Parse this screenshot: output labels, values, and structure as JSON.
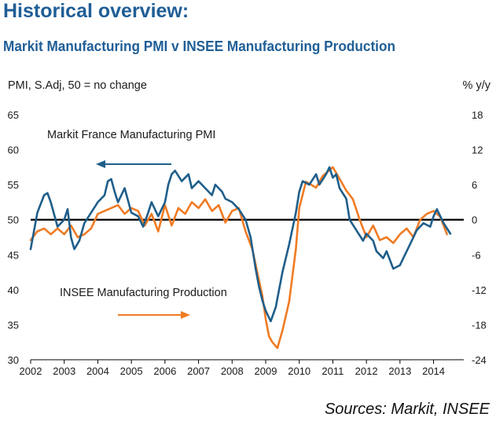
{
  "header": {
    "title": "Historical overview:",
    "subtitle": "Markit Manufacturing PMI v INSEE Manufacturing Production"
  },
  "footer": {
    "source": "Sources: Markit, INSEE"
  },
  "colors": {
    "pmi": "#1f5e8a",
    "production": "#f07b24",
    "zero_line": "#000000",
    "text": "#1a1a1a"
  },
  "chart_data": {
    "type": "line",
    "title": "Markit Manufacturing PMI v INSEE Manufacturing Production",
    "ylabel_left": "PMI, S.Adj, 50 = no change",
    "ylabel_right": "% y/y",
    "x_range": [
      2002,
      2014.9
    ],
    "ylim_left": [
      30,
      65
    ],
    "ylim_right": [
      -24,
      18
    ],
    "left_ticks": [
      "65",
      "60",
      "55",
      "50",
      "45",
      "40",
      "35",
      "30"
    ],
    "right_ticks": [
      "18",
      "12",
      "6",
      "0",
      "-6",
      "-12",
      "-18",
      "-24"
    ],
    "x_ticks": [
      "2002",
      "2003",
      "2004",
      "2005",
      "2006",
      "2007",
      "2008",
      "2009",
      "2010",
      "2011",
      "2012",
      "2013",
      "2014"
    ],
    "reference_line": {
      "axis": "left",
      "value": 50
    },
    "series": [
      {
        "name": "Markit France Manufacturing PMI",
        "axis": "left",
        "label": "Markit France Manufacturing PMI",
        "x": [
          2002.0,
          2002.2,
          2002.4,
          2002.5,
          2002.6,
          2002.8,
          2003.0,
          2003.1,
          2003.2,
          2003.3,
          2003.45,
          2003.6,
          2003.8,
          2004.0,
          2004.2,
          2004.3,
          2004.4,
          2004.5,
          2004.6,
          2004.8,
          2005.0,
          2005.2,
          2005.35,
          2005.5,
          2005.6,
          2005.8,
          2006.0,
          2006.1,
          2006.2,
          2006.3,
          2006.5,
          2006.7,
          2006.8,
          2007.0,
          2007.2,
          2007.4,
          2007.5,
          2007.7,
          2007.8,
          2008.0,
          2008.2,
          2008.4,
          2008.55,
          2008.7,
          2008.8,
          2008.9,
          2009.0,
          2009.15,
          2009.3,
          2009.5,
          2009.7,
          2009.9,
          2010.0,
          2010.1,
          2010.3,
          2010.5,
          2010.6,
          2010.8,
          2010.9,
          2011.0,
          2011.1,
          2011.2,
          2011.4,
          2011.5,
          2011.7,
          2011.9,
          2012.0,
          2012.2,
          2012.3,
          2012.5,
          2012.6,
          2012.8,
          2013.0,
          2013.1,
          2013.3,
          2013.5,
          2013.7,
          2013.9,
          2014.0,
          2014.1,
          2014.3,
          2014.5
        ],
        "values": [
          45.8,
          51.0,
          53.5,
          53.8,
          52.5,
          49.0,
          50.0,
          51.5,
          47.5,
          45.8,
          47.0,
          49.5,
          51.0,
          52.5,
          53.5,
          55.5,
          55.8,
          54.0,
          52.5,
          54.5,
          51.0,
          50.5,
          49.0,
          51.0,
          52.5,
          50.5,
          52.5,
          55.0,
          56.5,
          57.0,
          55.5,
          56.5,
          54.5,
          55.5,
          54.5,
          53.5,
          55.0,
          54.0,
          53.0,
          52.5,
          51.5,
          50.0,
          47.5,
          43.0,
          40.5,
          38.5,
          37.0,
          35.5,
          37.5,
          42.5,
          46.5,
          51.0,
          54.0,
          55.5,
          55.0,
          56.5,
          55.0,
          56.5,
          57.5,
          56.0,
          56.5,
          54.5,
          53.0,
          50.0,
          48.5,
          47.0,
          48.0,
          47.0,
          45.5,
          44.5,
          45.5,
          43.0,
          43.5,
          44.5,
          46.5,
          48.5,
          49.5,
          49.0,
          50.5,
          51.5,
          49.5,
          48.0
        ]
      },
      {
        "name": "INSEE Manufacturing Production",
        "axis": "right",
        "label": "INSEE Manufacturing Production",
        "x": [
          2002.0,
          2002.2,
          2002.4,
          2002.6,
          2002.8,
          2003.0,
          2003.2,
          2003.4,
          2003.6,
          2003.8,
          2004.0,
          2004.2,
          2004.4,
          2004.6,
          2004.8,
          2005.0,
          2005.2,
          2005.4,
          2005.6,
          2005.8,
          2006.0,
          2006.2,
          2006.4,
          2006.6,
          2006.8,
          2007.0,
          2007.2,
          2007.4,
          2007.6,
          2007.8,
          2008.0,
          2008.2,
          2008.4,
          2008.6,
          2008.75,
          2008.9,
          2009.0,
          2009.1,
          2009.2,
          2009.35,
          2009.5,
          2009.7,
          2009.9,
          2010.0,
          2010.2,
          2010.35,
          2010.5,
          2010.7,
          2010.9,
          2011.0,
          2011.2,
          2011.4,
          2011.6,
          2011.8,
          2012.0,
          2012.2,
          2012.4,
          2012.6,
          2012.8,
          2013.0,
          2013.2,
          2013.4,
          2013.6,
          2013.8,
          2014.0,
          2014.2,
          2014.4
        ],
        "values": [
          -3.5,
          -2.0,
          -1.5,
          -2.5,
          -1.5,
          -2.5,
          -1.0,
          -3.0,
          -2.5,
          -1.5,
          1.0,
          1.5,
          2.0,
          2.5,
          1.0,
          2.0,
          1.5,
          -1.0,
          1.0,
          -2.0,
          2.5,
          -1.0,
          2.0,
          1.0,
          3.0,
          2.0,
          3.5,
          1.5,
          2.5,
          -0.5,
          1.5,
          2.0,
          -2.0,
          -5.0,
          -9.0,
          -13.0,
          -17.0,
          -20.0,
          -21.0,
          -22.0,
          -19.0,
          -14.0,
          -5.0,
          2.0,
          6.5,
          6.0,
          5.5,
          7.5,
          8.5,
          9.0,
          7.0,
          5.0,
          3.5,
          0.0,
          -3.0,
          -1.0,
          -3.5,
          -3.0,
          -4.0,
          -2.5,
          -1.5,
          -3.0,
          0.0,
          1.0,
          1.5,
          0.5,
          -2.5
        ]
      }
    ]
  }
}
